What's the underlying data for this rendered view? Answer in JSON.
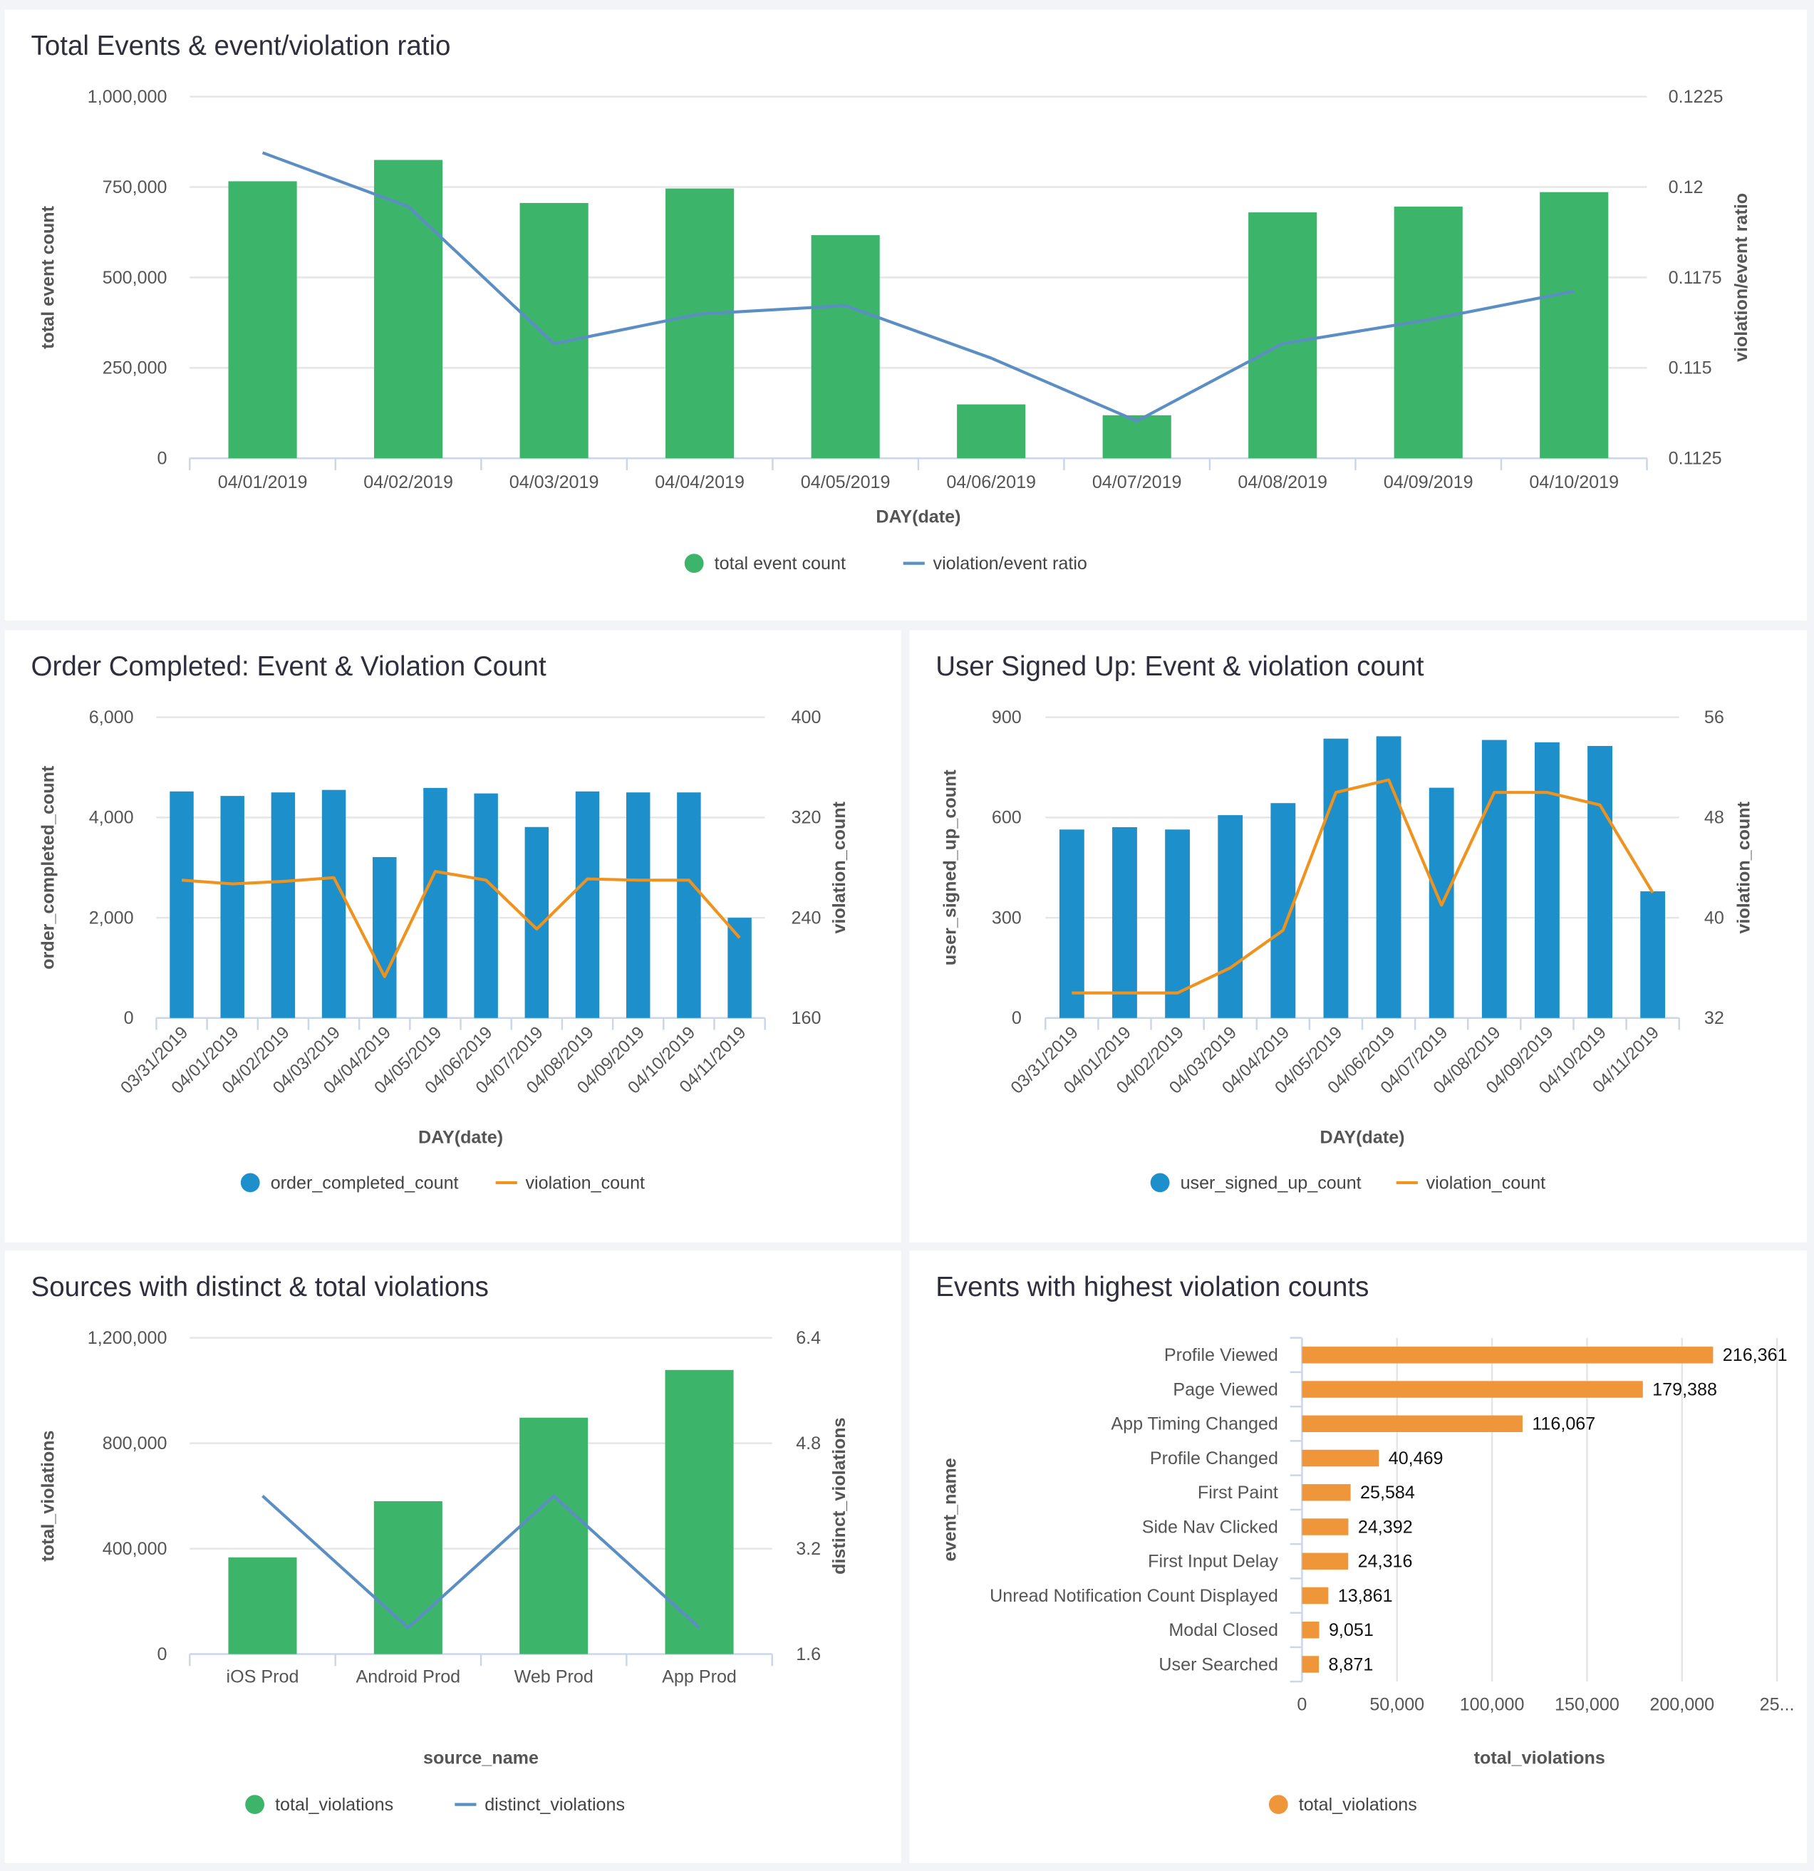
{
  "chart_data": [
    {
      "type": "bar+line",
      "title": "Total Events & event/violation ratio",
      "xlabel": "DAY(date)",
      "ylabel": "total event count",
      "y2label": "violation/event ratio",
      "categories": [
        "04/01/2019",
        "04/02/2019",
        "04/03/2019",
        "04/04/2019",
        "04/05/2019",
        "04/06/2019",
        "04/07/2019",
        "04/08/2019",
        "04/09/2019",
        "04/10/2019"
      ],
      "ylim": [
        0,
        1000000
      ],
      "y_ticks": [
        "0",
        "250,000",
        "500,000",
        "750,000",
        "1,000,000"
      ],
      "y2lim": [
        0.1125,
        0.1225
      ],
      "y2_ticks": [
        "0.1125",
        "0.115",
        "0.1175",
        "0.12",
        "0.1225"
      ],
      "grid": true,
      "legend": "bottom",
      "series": [
        {
          "name": "total event count",
          "type": "bar",
          "axis": "left",
          "color": "#3cb46a",
          "values": [
            766000,
            825000,
            706000,
            746000,
            617000,
            149000,
            119000,
            680000,
            696000,
            736000
          ]
        },
        {
          "name": "violation/event ratio",
          "type": "line",
          "axis": "right",
          "color": "#5b8fc4",
          "values": [
            0.12095,
            0.11946,
            0.11567,
            0.11649,
            0.11672,
            0.11527,
            0.11353,
            0.11567,
            0.11633,
            0.11712
          ]
        }
      ]
    },
    {
      "type": "bar+line",
      "title": "Order Completed: Event & Violation Count",
      "xlabel": "DAY(date)",
      "ylabel": "order_completed_count",
      "y2label": "violation_count",
      "categories": [
        "03/31/2019",
        "04/01/2019",
        "04/02/2019",
        "04/03/2019",
        "04/04/2019",
        "04/05/2019",
        "04/06/2019",
        "04/07/2019",
        "04/08/2019",
        "04/09/2019",
        "04/10/2019",
        "04/11/2019"
      ],
      "ylim": [
        0,
        6000
      ],
      "y_ticks": [
        "0",
        "2,000",
        "4,000",
        "6,000"
      ],
      "y2lim": [
        160,
        400
      ],
      "y2_ticks": [
        "160",
        "240",
        "320",
        "400"
      ],
      "grid": true,
      "legend": "bottom",
      "series": [
        {
          "name": "order_completed_count",
          "type": "bar",
          "axis": "left",
          "color": "#1d8fcb",
          "values": [
            4520,
            4430,
            4500,
            4550,
            3210,
            4590,
            4480,
            3810,
            4520,
            4500,
            4500,
            2000
          ]
        },
        {
          "name": "violation_count",
          "type": "line",
          "axis": "right",
          "color": "#f0921e",
          "values": [
            270,
            267,
            269,
            272,
            193,
            277,
            270,
            231,
            271,
            270,
            270,
            224
          ]
        }
      ]
    },
    {
      "type": "bar+line",
      "title": "User Signed Up: Event & violation count",
      "xlabel": "DAY(date)",
      "ylabel": "user_signed_up_count",
      "y2label": "violation_count",
      "categories": [
        "03/31/2019",
        "04/01/2019",
        "04/02/2019",
        "04/03/2019",
        "04/04/2019",
        "04/05/2019",
        "04/06/2019",
        "04/07/2019",
        "04/08/2019",
        "04/09/2019",
        "04/10/2019",
        "04/11/2019"
      ],
      "ylim": [
        0,
        900
      ],
      "y_ticks": [
        "0",
        "300",
        "600",
        "900"
      ],
      "y2lim": [
        32,
        56
      ],
      "y2_ticks": [
        "32",
        "40",
        "48",
        "56"
      ],
      "grid": true,
      "legend": "bottom",
      "series": [
        {
          "name": "user_signed_up_count",
          "type": "bar",
          "axis": "left",
          "color": "#1d8fcb",
          "values": [
            564,
            571,
            564,
            607,
            643,
            836,
            843,
            689,
            832,
            825,
            814,
            379
          ]
        },
        {
          "name": "violation_count",
          "type": "line",
          "axis": "right",
          "color": "#f0921e",
          "values": [
            34,
            34,
            34,
            36,
            39,
            50,
            51,
            41,
            50,
            50,
            49,
            42
          ]
        }
      ]
    },
    {
      "type": "bar+line",
      "title": "Sources with distinct & total violations",
      "xlabel": "source_name",
      "ylabel": "total_violations",
      "y2label": "distinct_violations",
      "categories": [
        "iOS Prod",
        "Android Prod",
        "Web Prod",
        "App Prod"
      ],
      "ylim": [
        0,
        1200000
      ],
      "y_ticks": [
        "0",
        "400,000",
        "800,000",
        "1,200,000"
      ],
      "y2lim": [
        1.6,
        6.4
      ],
      "y2_ticks": [
        "1.6",
        "3.2",
        "4.8",
        "6.4"
      ],
      "grid": true,
      "legend": "bottom",
      "series": [
        {
          "name": "total_violations",
          "type": "bar",
          "axis": "left",
          "color": "#3cb46a",
          "values": [
            367000,
            580000,
            897000,
            1078000
          ]
        },
        {
          "name": "distinct_violations",
          "type": "line",
          "axis": "right",
          "color": "#5b8fc4",
          "values": [
            4,
            2,
            4,
            2
          ]
        }
      ]
    },
    {
      "type": "bar",
      "orientation": "horizontal",
      "title": "Events with highest violation counts",
      "xlabel": "total_violations",
      "ylabel": "event_name",
      "categories": [
        "Profile Viewed",
        "Page Viewed",
        "App Timing Changed",
        "Profile Changed",
        "First Paint",
        "Side Nav Clicked",
        "First Input Delay",
        "Unread Notification Count Displayed",
        "Modal Closed",
        "User Searched"
      ],
      "xlim": [
        0,
        250000
      ],
      "x_ticks": [
        "0",
        "50,000",
        "100,000",
        "150,000",
        "200,000",
        "25..."
      ],
      "grid": true,
      "legend": "bottom",
      "series": [
        {
          "name": "total_violations",
          "type": "bar",
          "color": "#f0963a",
          "values": [
            216361,
            179388,
            116067,
            40469,
            25584,
            24392,
            24316,
            13861,
            9051,
            8871
          ],
          "data_labels": [
            "216,361",
            "179,388",
            "116,067",
            "40,469",
            "25,584",
            "24,392",
            "24,316",
            "13,861",
            "9,051",
            "8,871"
          ]
        }
      ]
    }
  ]
}
